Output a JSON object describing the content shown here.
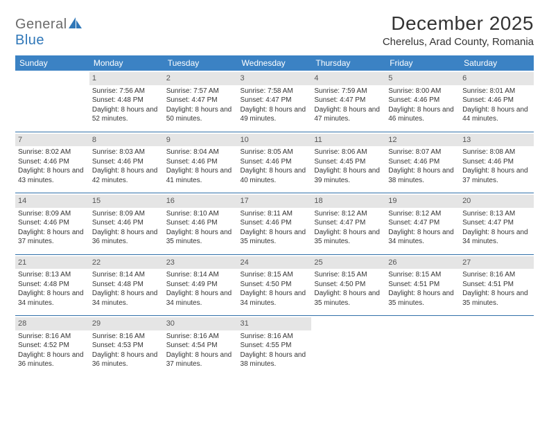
{
  "logo": {
    "general": "General",
    "blue": "Blue"
  },
  "title": "December 2025",
  "location": "Cherelus, Arad County, Romania",
  "colors": {
    "header_bg": "#3b82c4",
    "header_text": "#ffffff",
    "daynum_bg": "#e5e5e5",
    "daynum_text": "#555555",
    "rule": "#2f6fa8",
    "body_text": "#333333",
    "logo_gray": "#6b6b6b",
    "logo_blue": "#2f77b8",
    "page_bg": "#ffffff"
  },
  "typography": {
    "title_fontsize_pt": 21,
    "location_fontsize_pt": 11,
    "weekday_fontsize_pt": 9,
    "daynum_fontsize_pt": 8,
    "cell_fontsize_pt": 7.5
  },
  "weekdays": [
    "Sunday",
    "Monday",
    "Tuesday",
    "Wednesday",
    "Thursday",
    "Friday",
    "Saturday"
  ],
  "weeks": [
    [
      null,
      {
        "n": "1",
        "sr": "7:56 AM",
        "ss": "4:48 PM",
        "dl": "8 hours and 52 minutes."
      },
      {
        "n": "2",
        "sr": "7:57 AM",
        "ss": "4:47 PM",
        "dl": "8 hours and 50 minutes."
      },
      {
        "n": "3",
        "sr": "7:58 AM",
        "ss": "4:47 PM",
        "dl": "8 hours and 49 minutes."
      },
      {
        "n": "4",
        "sr": "7:59 AM",
        "ss": "4:47 PM",
        "dl": "8 hours and 47 minutes."
      },
      {
        "n": "5",
        "sr": "8:00 AM",
        "ss": "4:46 PM",
        "dl": "8 hours and 46 minutes."
      },
      {
        "n": "6",
        "sr": "8:01 AM",
        "ss": "4:46 PM",
        "dl": "8 hours and 44 minutes."
      }
    ],
    [
      {
        "n": "7",
        "sr": "8:02 AM",
        "ss": "4:46 PM",
        "dl": "8 hours and 43 minutes."
      },
      {
        "n": "8",
        "sr": "8:03 AM",
        "ss": "4:46 PM",
        "dl": "8 hours and 42 minutes."
      },
      {
        "n": "9",
        "sr": "8:04 AM",
        "ss": "4:46 PM",
        "dl": "8 hours and 41 minutes."
      },
      {
        "n": "10",
        "sr": "8:05 AM",
        "ss": "4:46 PM",
        "dl": "8 hours and 40 minutes."
      },
      {
        "n": "11",
        "sr": "8:06 AM",
        "ss": "4:45 PM",
        "dl": "8 hours and 39 minutes."
      },
      {
        "n": "12",
        "sr": "8:07 AM",
        "ss": "4:46 PM",
        "dl": "8 hours and 38 minutes."
      },
      {
        "n": "13",
        "sr": "8:08 AM",
        "ss": "4:46 PM",
        "dl": "8 hours and 37 minutes."
      }
    ],
    [
      {
        "n": "14",
        "sr": "8:09 AM",
        "ss": "4:46 PM",
        "dl": "8 hours and 37 minutes."
      },
      {
        "n": "15",
        "sr": "8:09 AM",
        "ss": "4:46 PM",
        "dl": "8 hours and 36 minutes."
      },
      {
        "n": "16",
        "sr": "8:10 AM",
        "ss": "4:46 PM",
        "dl": "8 hours and 35 minutes."
      },
      {
        "n": "17",
        "sr": "8:11 AM",
        "ss": "4:46 PM",
        "dl": "8 hours and 35 minutes."
      },
      {
        "n": "18",
        "sr": "8:12 AM",
        "ss": "4:47 PM",
        "dl": "8 hours and 35 minutes."
      },
      {
        "n": "19",
        "sr": "8:12 AM",
        "ss": "4:47 PM",
        "dl": "8 hours and 34 minutes."
      },
      {
        "n": "20",
        "sr": "8:13 AM",
        "ss": "4:47 PM",
        "dl": "8 hours and 34 minutes."
      }
    ],
    [
      {
        "n": "21",
        "sr": "8:13 AM",
        "ss": "4:48 PM",
        "dl": "8 hours and 34 minutes."
      },
      {
        "n": "22",
        "sr": "8:14 AM",
        "ss": "4:48 PM",
        "dl": "8 hours and 34 minutes."
      },
      {
        "n": "23",
        "sr": "8:14 AM",
        "ss": "4:49 PM",
        "dl": "8 hours and 34 minutes."
      },
      {
        "n": "24",
        "sr": "8:15 AM",
        "ss": "4:50 PM",
        "dl": "8 hours and 34 minutes."
      },
      {
        "n": "25",
        "sr": "8:15 AM",
        "ss": "4:50 PM",
        "dl": "8 hours and 35 minutes."
      },
      {
        "n": "26",
        "sr": "8:15 AM",
        "ss": "4:51 PM",
        "dl": "8 hours and 35 minutes."
      },
      {
        "n": "27",
        "sr": "8:16 AM",
        "ss": "4:51 PM",
        "dl": "8 hours and 35 minutes."
      }
    ],
    [
      {
        "n": "28",
        "sr": "8:16 AM",
        "ss": "4:52 PM",
        "dl": "8 hours and 36 minutes."
      },
      {
        "n": "29",
        "sr": "8:16 AM",
        "ss": "4:53 PM",
        "dl": "8 hours and 36 minutes."
      },
      {
        "n": "30",
        "sr": "8:16 AM",
        "ss": "4:54 PM",
        "dl": "8 hours and 37 minutes."
      },
      {
        "n": "31",
        "sr": "8:16 AM",
        "ss": "4:55 PM",
        "dl": "8 hours and 38 minutes."
      },
      null,
      null,
      null
    ]
  ],
  "labels": {
    "sunrise_prefix": "Sunrise: ",
    "sunset_prefix": "Sunset: ",
    "daylight_prefix": "Daylight: "
  }
}
